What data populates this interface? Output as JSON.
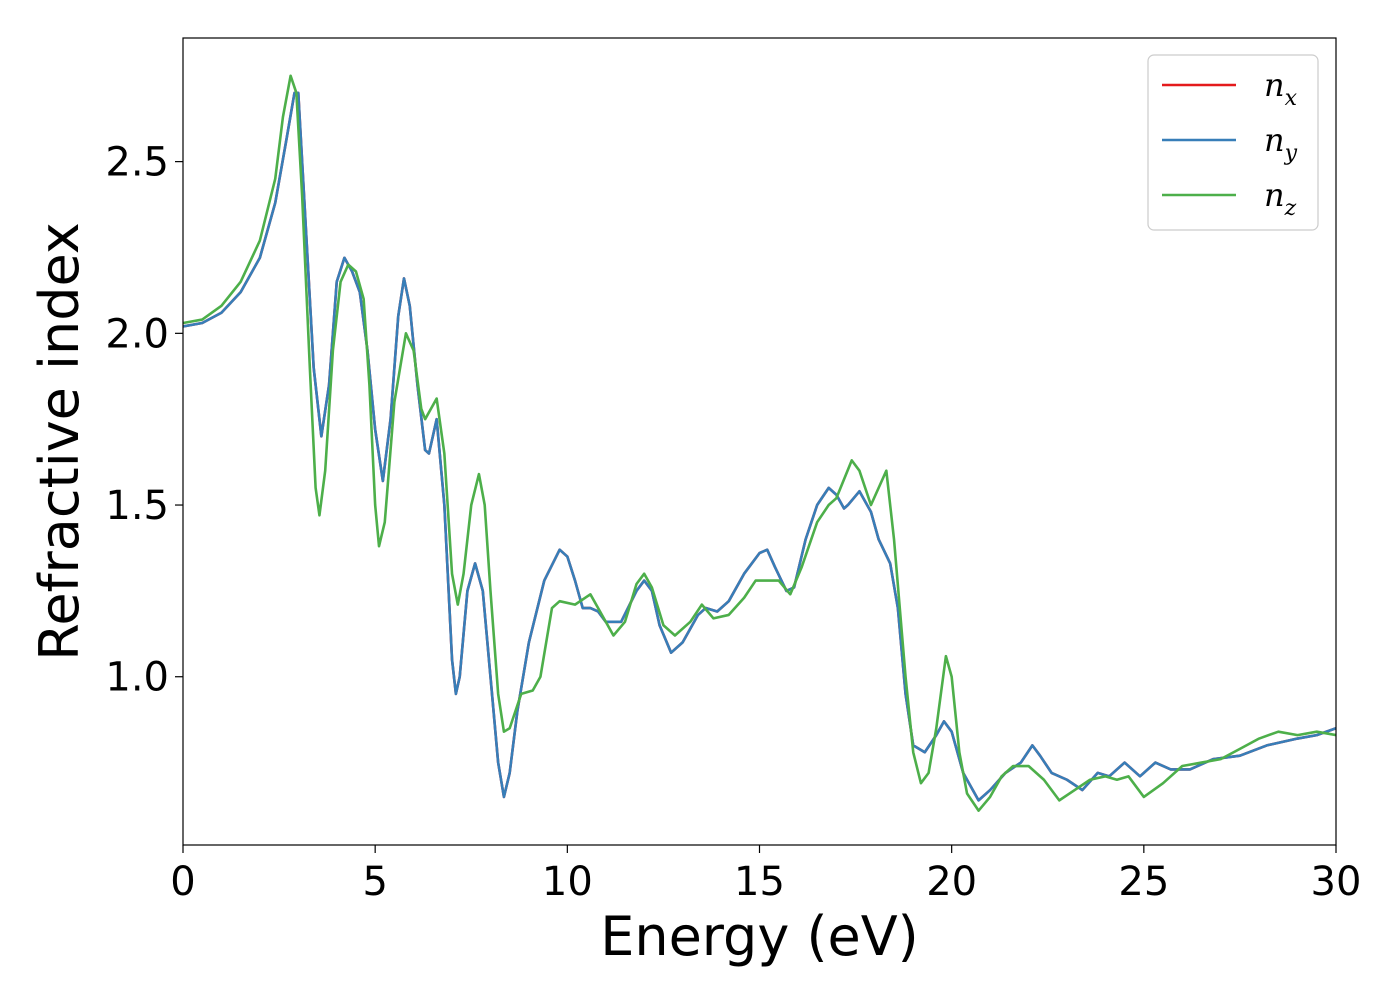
{
  "chart_data": {
    "type": "line",
    "title": "",
    "xlabel": "Energy (eV)",
    "ylabel": "Refractive index",
    "xlim": [
      0,
      30
    ],
    "ylim": [
      0.51,
      2.86
    ],
    "xticks": [
      "0",
      "5",
      "10",
      "15",
      "20",
      "25",
      "30"
    ],
    "yticks": [
      "1.0",
      "1.5",
      "2.0",
      "2.5"
    ],
    "grid": false,
    "legend_position": "top-right",
    "series": [
      {
        "name": "n_x",
        "label_main": "n",
        "label_sub": "x",
        "color": "#e41a1c",
        "points": [
          [
            0,
            2.02
          ],
          [
            0.5,
            2.03
          ],
          [
            1,
            2.06
          ],
          [
            1.5,
            2.12
          ],
          [
            2,
            2.22
          ],
          [
            2.4,
            2.38
          ],
          [
            2.7,
            2.57
          ],
          [
            2.9,
            2.7
          ],
          [
            3.0,
            2.7
          ],
          [
            3.2,
            2.3
          ],
          [
            3.4,
            1.9
          ],
          [
            3.6,
            1.7
          ],
          [
            3.8,
            1.85
          ],
          [
            4.0,
            2.15
          ],
          [
            4.2,
            2.22
          ],
          [
            4.4,
            2.18
          ],
          [
            4.6,
            2.12
          ],
          [
            4.8,
            1.95
          ],
          [
            5.0,
            1.72
          ],
          [
            5.2,
            1.57
          ],
          [
            5.4,
            1.75
          ],
          [
            5.6,
            2.05
          ],
          [
            5.75,
            2.16
          ],
          [
            5.9,
            2.08
          ],
          [
            6.1,
            1.85
          ],
          [
            6.3,
            1.66
          ],
          [
            6.4,
            1.65
          ],
          [
            6.5,
            1.7
          ],
          [
            6.6,
            1.75
          ],
          [
            6.8,
            1.5
          ],
          [
            7.0,
            1.05
          ],
          [
            7.1,
            0.95
          ],
          [
            7.2,
            1.0
          ],
          [
            7.4,
            1.25
          ],
          [
            7.6,
            1.33
          ],
          [
            7.8,
            1.25
          ],
          [
            8.0,
            1.0
          ],
          [
            8.2,
            0.75
          ],
          [
            8.35,
            0.65
          ],
          [
            8.5,
            0.72
          ],
          [
            8.7,
            0.9
          ],
          [
            9.0,
            1.1
          ],
          [
            9.4,
            1.28
          ],
          [
            9.8,
            1.37
          ],
          [
            10.0,
            1.35
          ],
          [
            10.2,
            1.28
          ],
          [
            10.4,
            1.2
          ],
          [
            10.6,
            1.2
          ],
          [
            10.8,
            1.19
          ],
          [
            11.0,
            1.16
          ],
          [
            11.4,
            1.16
          ],
          [
            11.8,
            1.25
          ],
          [
            12.0,
            1.28
          ],
          [
            12.2,
            1.25
          ],
          [
            12.4,
            1.15
          ],
          [
            12.7,
            1.07
          ],
          [
            13.0,
            1.1
          ],
          [
            13.4,
            1.18
          ],
          [
            13.6,
            1.2
          ],
          [
            13.9,
            1.19
          ],
          [
            14.2,
            1.22
          ],
          [
            14.6,
            1.3
          ],
          [
            15.0,
            1.36
          ],
          [
            15.2,
            1.37
          ],
          [
            15.4,
            1.32
          ],
          [
            15.7,
            1.25
          ],
          [
            15.9,
            1.26
          ],
          [
            16.2,
            1.4
          ],
          [
            16.5,
            1.5
          ],
          [
            16.8,
            1.55
          ],
          [
            17.0,
            1.53
          ],
          [
            17.2,
            1.49
          ],
          [
            17.3,
            1.5
          ],
          [
            17.6,
            1.54
          ],
          [
            17.9,
            1.48
          ],
          [
            18.1,
            1.4
          ],
          [
            18.4,
            1.33
          ],
          [
            18.6,
            1.2
          ],
          [
            18.8,
            0.95
          ],
          [
            19.0,
            0.8
          ],
          [
            19.3,
            0.78
          ],
          [
            19.6,
            0.83
          ],
          [
            19.8,
            0.87
          ],
          [
            20.0,
            0.84
          ],
          [
            20.3,
            0.72
          ],
          [
            20.7,
            0.64
          ],
          [
            21.0,
            0.67
          ],
          [
            21.4,
            0.72
          ],
          [
            21.8,
            0.75
          ],
          [
            22.1,
            0.8
          ],
          [
            22.3,
            0.77
          ],
          [
            22.6,
            0.72
          ],
          [
            23.0,
            0.7
          ],
          [
            23.4,
            0.67
          ],
          [
            23.8,
            0.72
          ],
          [
            24.1,
            0.71
          ],
          [
            24.5,
            0.75
          ],
          [
            24.9,
            0.71
          ],
          [
            25.3,
            0.75
          ],
          [
            25.7,
            0.73
          ],
          [
            26.2,
            0.73
          ],
          [
            26.8,
            0.76
          ],
          [
            27.5,
            0.77
          ],
          [
            28.2,
            0.8
          ],
          [
            29.0,
            0.82
          ],
          [
            29.5,
            0.83
          ],
          [
            30.0,
            0.85
          ]
        ]
      },
      {
        "name": "n_y",
        "label_main": "n",
        "label_sub": "y",
        "color": "#377eb8",
        "points": [
          [
            0,
            2.02
          ],
          [
            0.5,
            2.03
          ],
          [
            1,
            2.06
          ],
          [
            1.5,
            2.12
          ],
          [
            2,
            2.22
          ],
          [
            2.4,
            2.38
          ],
          [
            2.7,
            2.57
          ],
          [
            2.9,
            2.7
          ],
          [
            3.0,
            2.7
          ],
          [
            3.2,
            2.3
          ],
          [
            3.4,
            1.9
          ],
          [
            3.6,
            1.7
          ],
          [
            3.8,
            1.85
          ],
          [
            4.0,
            2.15
          ],
          [
            4.2,
            2.22
          ],
          [
            4.4,
            2.18
          ],
          [
            4.6,
            2.12
          ],
          [
            4.8,
            1.95
          ],
          [
            5.0,
            1.72
          ],
          [
            5.2,
            1.57
          ],
          [
            5.4,
            1.75
          ],
          [
            5.6,
            2.05
          ],
          [
            5.75,
            2.16
          ],
          [
            5.9,
            2.08
          ],
          [
            6.1,
            1.85
          ],
          [
            6.3,
            1.66
          ],
          [
            6.4,
            1.65
          ],
          [
            6.5,
            1.7
          ],
          [
            6.6,
            1.75
          ],
          [
            6.8,
            1.5
          ],
          [
            7.0,
            1.05
          ],
          [
            7.1,
            0.95
          ],
          [
            7.2,
            1.0
          ],
          [
            7.4,
            1.25
          ],
          [
            7.6,
            1.33
          ],
          [
            7.8,
            1.25
          ],
          [
            8.0,
            1.0
          ],
          [
            8.2,
            0.75
          ],
          [
            8.35,
            0.65
          ],
          [
            8.5,
            0.72
          ],
          [
            8.7,
            0.9
          ],
          [
            9.0,
            1.1
          ],
          [
            9.4,
            1.28
          ],
          [
            9.8,
            1.37
          ],
          [
            10.0,
            1.35
          ],
          [
            10.2,
            1.28
          ],
          [
            10.4,
            1.2
          ],
          [
            10.6,
            1.2
          ],
          [
            10.8,
            1.19
          ],
          [
            11.0,
            1.16
          ],
          [
            11.4,
            1.16
          ],
          [
            11.8,
            1.25
          ],
          [
            12.0,
            1.28
          ],
          [
            12.2,
            1.25
          ],
          [
            12.4,
            1.15
          ],
          [
            12.7,
            1.07
          ],
          [
            13.0,
            1.1
          ],
          [
            13.4,
            1.18
          ],
          [
            13.6,
            1.2
          ],
          [
            13.9,
            1.19
          ],
          [
            14.2,
            1.22
          ],
          [
            14.6,
            1.3
          ],
          [
            15.0,
            1.36
          ],
          [
            15.2,
            1.37
          ],
          [
            15.4,
            1.32
          ],
          [
            15.7,
            1.25
          ],
          [
            15.9,
            1.26
          ],
          [
            16.2,
            1.4
          ],
          [
            16.5,
            1.5
          ],
          [
            16.8,
            1.55
          ],
          [
            17.0,
            1.53
          ],
          [
            17.2,
            1.49
          ],
          [
            17.3,
            1.5
          ],
          [
            17.6,
            1.54
          ],
          [
            17.9,
            1.48
          ],
          [
            18.1,
            1.4
          ],
          [
            18.4,
            1.33
          ],
          [
            18.6,
            1.2
          ],
          [
            18.8,
            0.95
          ],
          [
            19.0,
            0.8
          ],
          [
            19.3,
            0.78
          ],
          [
            19.6,
            0.83
          ],
          [
            19.8,
            0.87
          ],
          [
            20.0,
            0.84
          ],
          [
            20.3,
            0.72
          ],
          [
            20.7,
            0.64
          ],
          [
            21.0,
            0.67
          ],
          [
            21.4,
            0.72
          ],
          [
            21.8,
            0.75
          ],
          [
            22.1,
            0.8
          ],
          [
            22.3,
            0.77
          ],
          [
            22.6,
            0.72
          ],
          [
            23.0,
            0.7
          ],
          [
            23.4,
            0.67
          ],
          [
            23.8,
            0.72
          ],
          [
            24.1,
            0.71
          ],
          [
            24.5,
            0.75
          ],
          [
            24.9,
            0.71
          ],
          [
            25.3,
            0.75
          ],
          [
            25.7,
            0.73
          ],
          [
            26.2,
            0.73
          ],
          [
            26.8,
            0.76
          ],
          [
            27.5,
            0.77
          ],
          [
            28.2,
            0.8
          ],
          [
            29.0,
            0.82
          ],
          [
            29.5,
            0.83
          ],
          [
            30.0,
            0.85
          ]
        ]
      },
      {
        "name": "n_z",
        "label_main": "n",
        "label_sub": "z",
        "color": "#4daf4a",
        "points": [
          [
            0,
            2.03
          ],
          [
            0.5,
            2.04
          ],
          [
            1,
            2.08
          ],
          [
            1.5,
            2.15
          ],
          [
            2,
            2.27
          ],
          [
            2.4,
            2.45
          ],
          [
            2.6,
            2.63
          ],
          [
            2.8,
            2.75
          ],
          [
            2.95,
            2.7
          ],
          [
            3.1,
            2.4
          ],
          [
            3.3,
            1.9
          ],
          [
            3.45,
            1.55
          ],
          [
            3.55,
            1.47
          ],
          [
            3.7,
            1.6
          ],
          [
            3.9,
            1.95
          ],
          [
            4.1,
            2.15
          ],
          [
            4.3,
            2.2
          ],
          [
            4.5,
            2.18
          ],
          [
            4.7,
            2.1
          ],
          [
            4.85,
            1.85
          ],
          [
            5.0,
            1.5
          ],
          [
            5.1,
            1.38
          ],
          [
            5.25,
            1.45
          ],
          [
            5.5,
            1.8
          ],
          [
            5.8,
            2.0
          ],
          [
            6.0,
            1.95
          ],
          [
            6.2,
            1.78
          ],
          [
            6.3,
            1.75
          ],
          [
            6.45,
            1.78
          ],
          [
            6.6,
            1.81
          ],
          [
            6.8,
            1.65
          ],
          [
            7.0,
            1.3
          ],
          [
            7.15,
            1.21
          ],
          [
            7.3,
            1.3
          ],
          [
            7.5,
            1.5
          ],
          [
            7.7,
            1.59
          ],
          [
            7.85,
            1.5
          ],
          [
            8.0,
            1.25
          ],
          [
            8.2,
            0.95
          ],
          [
            8.35,
            0.84
          ],
          [
            8.5,
            0.85
          ],
          [
            8.8,
            0.95
          ],
          [
            9.1,
            0.96
          ],
          [
            9.3,
            1.0
          ],
          [
            9.6,
            1.2
          ],
          [
            9.8,
            1.22
          ],
          [
            10.2,
            1.21
          ],
          [
            10.6,
            1.24
          ],
          [
            10.8,
            1.2
          ],
          [
            11.2,
            1.12
          ],
          [
            11.5,
            1.16
          ],
          [
            11.8,
            1.27
          ],
          [
            12.0,
            1.3
          ],
          [
            12.2,
            1.26
          ],
          [
            12.5,
            1.15
          ],
          [
            12.8,
            1.12
          ],
          [
            13.2,
            1.16
          ],
          [
            13.5,
            1.21
          ],
          [
            13.8,
            1.17
          ],
          [
            14.2,
            1.18
          ],
          [
            14.6,
            1.23
          ],
          [
            14.9,
            1.28
          ],
          [
            15.5,
            1.28
          ],
          [
            15.8,
            1.24
          ],
          [
            16.1,
            1.32
          ],
          [
            16.5,
            1.45
          ],
          [
            16.8,
            1.5
          ],
          [
            17.0,
            1.52
          ],
          [
            17.4,
            1.63
          ],
          [
            17.6,
            1.6
          ],
          [
            17.9,
            1.5
          ],
          [
            18.1,
            1.55
          ],
          [
            18.3,
            1.6
          ],
          [
            18.5,
            1.4
          ],
          [
            18.8,
            1.0
          ],
          [
            19.0,
            0.78
          ],
          [
            19.2,
            0.69
          ],
          [
            19.4,
            0.72
          ],
          [
            19.6,
            0.85
          ],
          [
            19.85,
            1.06
          ],
          [
            20.0,
            1.0
          ],
          [
            20.2,
            0.78
          ],
          [
            20.4,
            0.66
          ],
          [
            20.7,
            0.61
          ],
          [
            21.0,
            0.65
          ],
          [
            21.3,
            0.71
          ],
          [
            21.6,
            0.74
          ],
          [
            22.0,
            0.74
          ],
          [
            22.4,
            0.7
          ],
          [
            22.8,
            0.64
          ],
          [
            23.2,
            0.67
          ],
          [
            23.6,
            0.7
          ],
          [
            24.0,
            0.71
          ],
          [
            24.3,
            0.7
          ],
          [
            24.6,
            0.71
          ],
          [
            25.0,
            0.65
          ],
          [
            25.5,
            0.69
          ],
          [
            26.0,
            0.74
          ],
          [
            26.5,
            0.75
          ],
          [
            27.0,
            0.76
          ],
          [
            27.5,
            0.79
          ],
          [
            28.0,
            0.82
          ],
          [
            28.5,
            0.84
          ],
          [
            29.0,
            0.83
          ],
          [
            29.5,
            0.84
          ],
          [
            30.0,
            0.83
          ]
        ]
      }
    ]
  }
}
